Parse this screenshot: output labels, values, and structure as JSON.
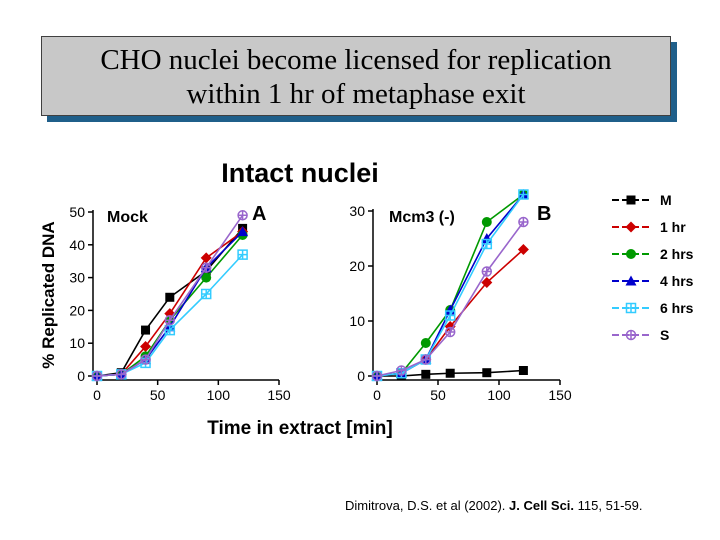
{
  "slide_title": {
    "line1": "CHO nuclei become licensed for replication",
    "line2": "within 1 hr of metaphase exit"
  },
  "citation": {
    "authors": "Dimitrova, D.S. et al (2002). ",
    "journal": "J. Cell Sci.",
    "rest": " 115, 51-59."
  },
  "chart_data": {
    "type": "line",
    "title": "Intact nuclei",
    "xlabel": "Time in extract [min]",
    "ylabel": "% Replicated DNA",
    "legend_position": "right",
    "grid": false,
    "legend": [
      {
        "name": "M",
        "color": "#000000",
        "marker": "square"
      },
      {
        "name": "1 hr",
        "color": "#cc0000",
        "marker": "diamond"
      },
      {
        "name": "2 hrs",
        "color": "#009900",
        "marker": "circle"
      },
      {
        "name": "4 hrs",
        "color": "#0000cc",
        "marker": "triangle"
      },
      {
        "name": "6 hrs",
        "color": "#33ccff",
        "marker": "boxplus"
      },
      {
        "name": "S",
        "color": "#9966cc",
        "marker": "circleplus"
      }
    ],
    "panels": [
      {
        "label": "Mock",
        "letter": "A",
        "xlim": [
          0,
          150
        ],
        "ylim": [
          0,
          50
        ],
        "xticks": [
          0,
          50,
          100,
          150
        ],
        "yticks": [
          0,
          10,
          20,
          30,
          40,
          50
        ],
        "series": [
          {
            "name": "M",
            "x": [
              0,
              20,
              40,
              60,
              90,
              120
            ],
            "y": [
              0,
              1,
              14,
              24,
              32,
              45
            ]
          },
          {
            "name": "1 hr",
            "x": [
              0,
              20,
              40,
              60,
              90,
              120
            ],
            "y": [
              0,
              0.5,
              9,
              19,
              36,
              44
            ]
          },
          {
            "name": "2 hrs",
            "x": [
              0,
              20,
              40,
              60,
              90,
              120
            ],
            "y": [
              0,
              0.5,
              6,
              17,
              30,
              43
            ]
          },
          {
            "name": "4 hrs",
            "x": [
              0,
              20,
              40,
              60,
              90,
              120
            ],
            "y": [
              0,
              0.5,
              5,
              15,
              33,
              44
            ]
          },
          {
            "name": "6 hrs",
            "x": [
              0,
              20,
              40,
              60,
              90,
              120
            ],
            "y": [
              0,
              0.5,
              4,
              14,
              25,
              37
            ]
          },
          {
            "name": "S",
            "x": [
              0,
              20,
              40,
              60,
              90,
              120
            ],
            "y": [
              0,
              0.5,
              5,
              17,
              33,
              49
            ]
          }
        ]
      },
      {
        "label": "Mcm3 (-)",
        "letter": "B",
        "xlim": [
          0,
          150
        ],
        "ylim": [
          0,
          32
        ],
        "xticks": [
          0,
          50,
          100,
          150
        ],
        "yticks": [
          0,
          10,
          20,
          30
        ],
        "series": [
          {
            "name": "M",
            "x": [
              0,
              20,
              40,
              60,
              90,
              120
            ],
            "y": [
              0,
              0,
              0.3,
              0.5,
              0.6,
              1
            ]
          },
          {
            "name": "1 hr",
            "x": [
              0,
              20,
              40,
              60,
              90,
              120
            ],
            "y": [
              0,
              0.5,
              3,
              9,
              17,
              23
            ]
          },
          {
            "name": "2 hrs",
            "x": [
              0,
              20,
              40,
              60,
              90,
              120
            ],
            "y": [
              0,
              0.5,
              6,
              12,
              28,
              33
            ]
          },
          {
            "name": "4 hrs",
            "x": [
              0,
              20,
              40,
              60,
              90,
              120
            ],
            "y": [
              0,
              0.5,
              3,
              12,
              25,
              33
            ]
          },
          {
            "name": "6 hrs",
            "x": [
              0,
              20,
              40,
              60,
              90,
              120
            ],
            "y": [
              0,
              0.5,
              3,
              11,
              24,
              33
            ]
          },
          {
            "name": "S",
            "x": [
              0,
              20,
              40,
              60,
              90,
              120
            ],
            "y": [
              0,
              1,
              3,
              8,
              19,
              28
            ]
          }
        ]
      }
    ]
  }
}
